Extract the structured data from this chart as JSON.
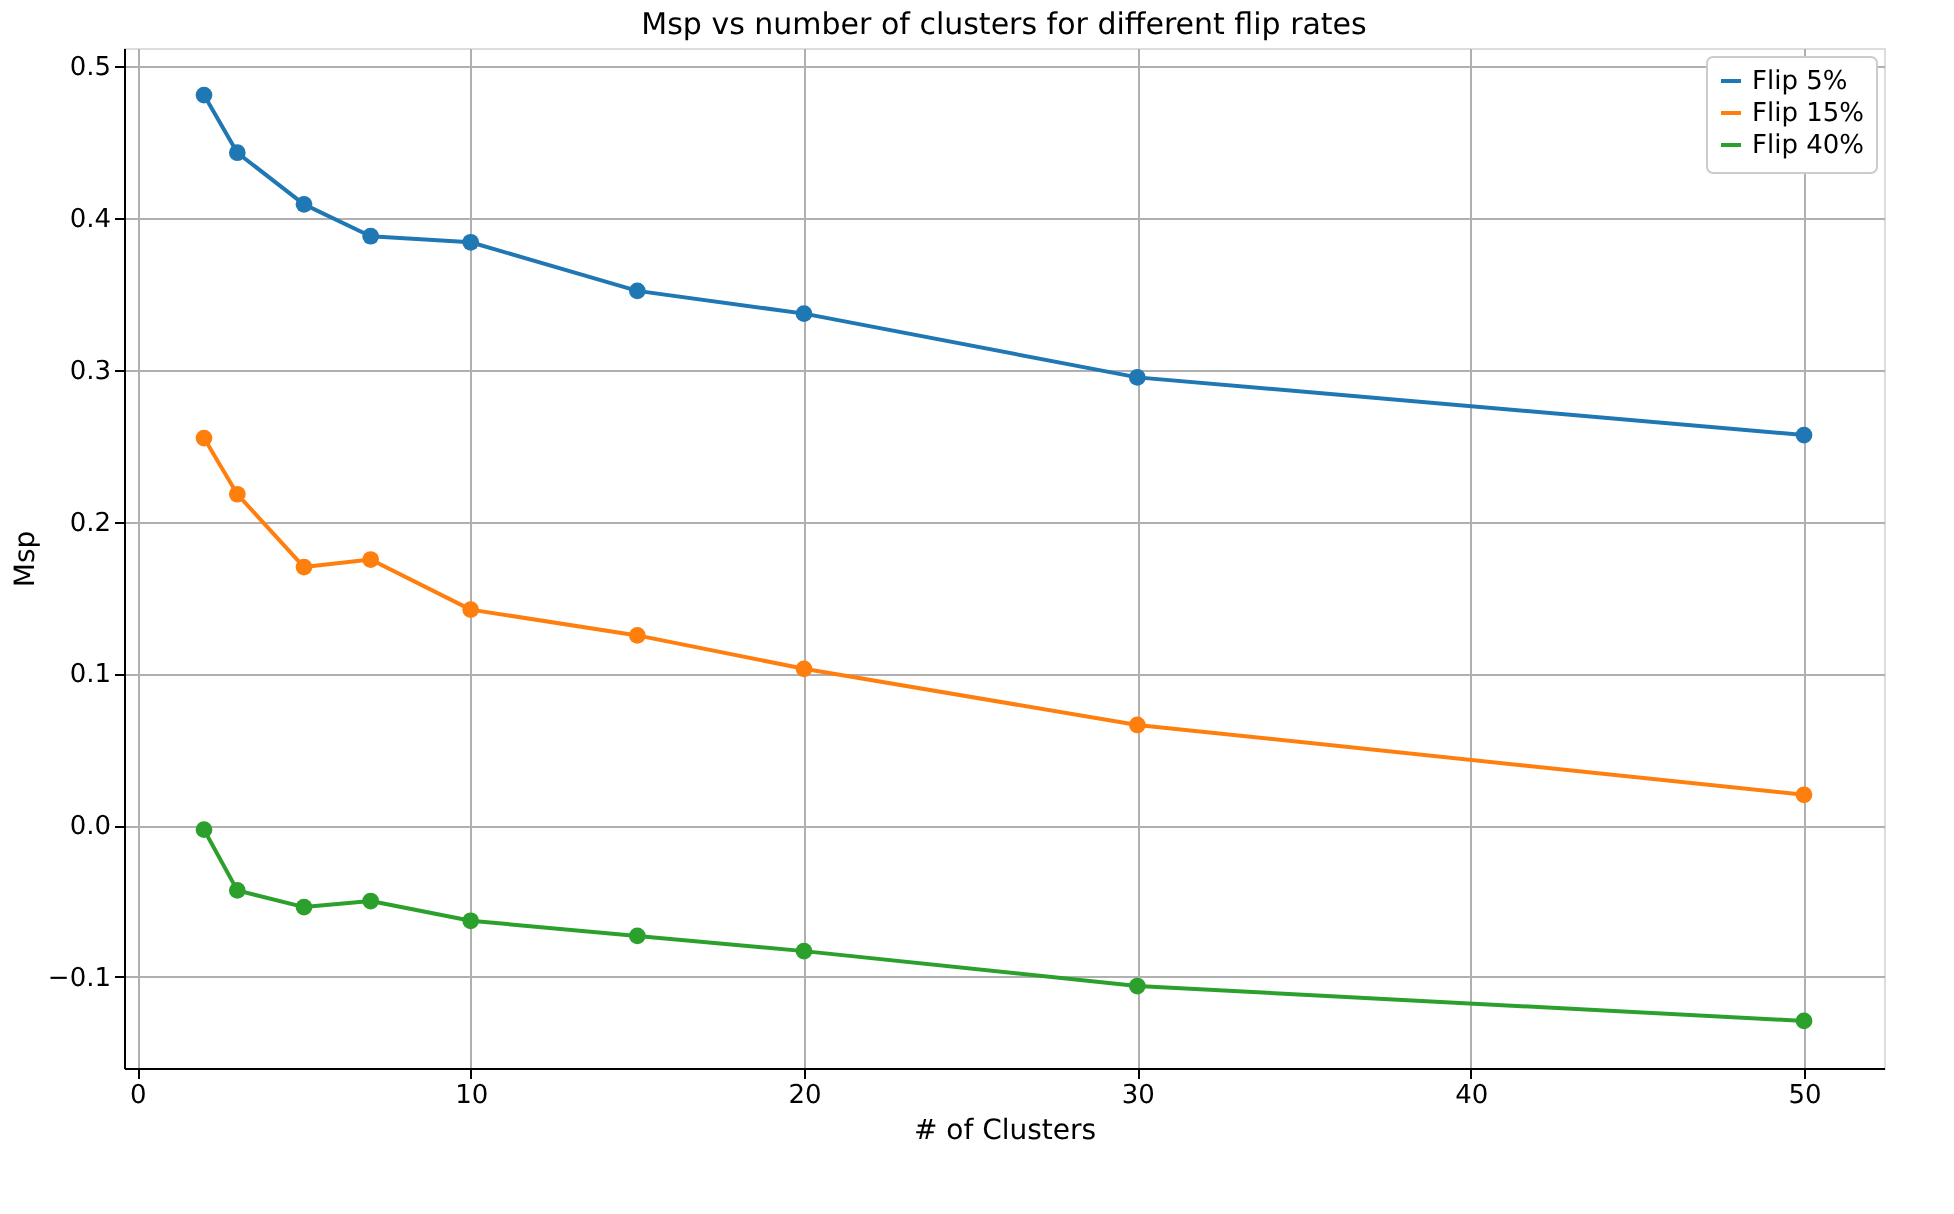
{
  "chart_data": {
    "type": "line",
    "title": "Msp vs number of clusters for different flip rates",
    "xlabel": "# of Clusters",
    "ylabel": "Msp",
    "x": [
      2,
      3,
      5,
      7,
      10,
      15,
      20,
      30,
      50
    ],
    "series": [
      {
        "name": "Flip 5%",
        "color": "#1f77b4",
        "values": [
          0.481,
          0.443,
          0.409,
          0.388,
          0.384,
          0.352,
          0.337,
          0.295,
          0.257
        ]
      },
      {
        "name": "Flip 15%",
        "color": "#ff7f0e",
        "values": [
          0.255,
          0.218,
          0.17,
          0.175,
          0.142,
          0.125,
          0.103,
          0.066,
          0.02
        ]
      },
      {
        "name": "Flip 40%",
        "color": "#2ca02c",
        "values": [
          -0.003,
          -0.043,
          -0.054,
          -0.05,
          -0.063,
          -0.073,
          -0.083,
          -0.106,
          -0.129
        ]
      }
    ],
    "xlim": [
      -0.4,
      52.4
    ],
    "xticks": [
      0,
      10,
      20,
      30,
      40,
      50
    ],
    "ylim": [
      -0.16,
      0.512
    ],
    "yticks": [
      {
        "value": -0.1,
        "label": "−0.1"
      },
      {
        "value": 0,
        "label": "0.0"
      },
      {
        "value": 0.1,
        "label": "0.1"
      },
      {
        "value": 0.2,
        "label": "0.2"
      },
      {
        "value": 0.3,
        "label": "0.3"
      },
      {
        "value": 0.4,
        "label": "0.4"
      },
      {
        "value": 0.5,
        "label": "0.5"
      }
    ],
    "grid": true,
    "legend": "top right",
    "marker": "circle",
    "line_style": "solid"
  }
}
